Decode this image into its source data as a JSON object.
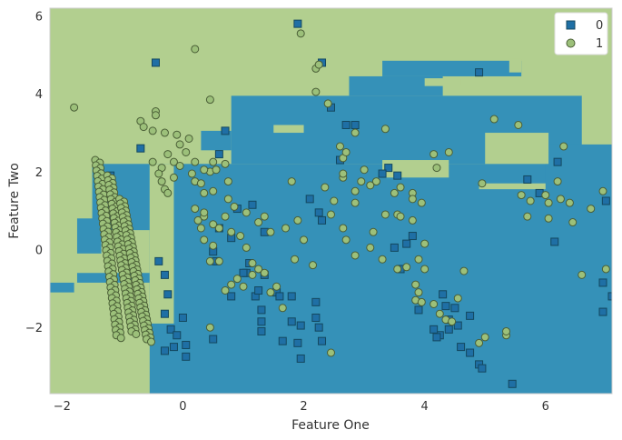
{
  "chart_data": {
    "type": "scatter",
    "title": "",
    "xlabel": "Feature One",
    "ylabel": "Feature Two",
    "xlim": [
      -2.2,
      7.1
    ],
    "ylim": [
      -3.7,
      6.2
    ],
    "xticks": [
      "−2",
      "0",
      "2",
      "4",
      "6"
    ],
    "xtick_values": [
      -2,
      0,
      2,
      4,
      6
    ],
    "yticks": [
      "−2",
      "0",
      "2",
      "4",
      "6"
    ],
    "ytick_values": [
      -2,
      0,
      2,
      4,
      6
    ],
    "grid": false,
    "legend_position": "top-right",
    "background_colors": {
      "class_0_region": "#3591b8",
      "class_1_region": "#b2cf8f"
    },
    "series": [
      {
        "name": "0",
        "marker": "square",
        "color": "#1f6fa5",
        "points": [
          [
            1.9,
            5.8
          ],
          [
            -0.45,
            4.8
          ],
          [
            2.3,
            4.8
          ],
          [
            4.9,
            4.55
          ],
          [
            2.45,
            3.65
          ],
          [
            2.7,
            3.2
          ],
          [
            2.85,
            3.2
          ],
          [
            0.7,
            3.05
          ],
          [
            -0.7,
            2.6
          ],
          [
            0.6,
            2.45
          ],
          [
            -1.2,
            1.9
          ],
          [
            3.4,
            2.1
          ],
          [
            2.6,
            2.3
          ],
          [
            3.55,
            1.9
          ],
          [
            3.3,
            1.95
          ],
          [
            5.7,
            1.8
          ],
          [
            6.2,
            2.25
          ],
          [
            5.9,
            1.45
          ],
          [
            7.0,
            1.25
          ],
          [
            2.1,
            1.3
          ],
          [
            2.25,
            0.95
          ],
          [
            2.3,
            0.75
          ],
          [
            0.9,
            1.05
          ],
          [
            1.15,
            1.15
          ],
          [
            0.6,
            0.55
          ],
          [
            1.35,
            0.45
          ],
          [
            3.8,
            0.35
          ],
          [
            3.7,
            0.15
          ],
          [
            3.5,
            0.05
          ],
          [
            6.15,
            0.2
          ],
          [
            3.6,
            -0.5
          ],
          [
            0.5,
            -0.05
          ],
          [
            0.55,
            -0.3
          ],
          [
            0.8,
            0.3
          ],
          [
            1.05,
            -0.6
          ],
          [
            1.0,
            -0.6
          ],
          [
            1.35,
            -0.65
          ],
          [
            1.1,
            -0.35
          ],
          [
            0.8,
            -1.2
          ],
          [
            1.2,
            -1.2
          ],
          [
            1.25,
            -1.05
          ],
          [
            1.55,
            -1.1
          ],
          [
            1.6,
            -1.2
          ],
          [
            1.8,
            -1.2
          ],
          [
            -0.4,
            -0.3
          ],
          [
            -0.3,
            -0.65
          ],
          [
            -0.25,
            -1.15
          ],
          [
            -0.3,
            -1.65
          ],
          [
            -0.2,
            -2.05
          ],
          [
            -0.1,
            -2.2
          ],
          [
            -0.15,
            -2.5
          ],
          [
            0.05,
            -2.45
          ],
          [
            0.05,
            -2.75
          ],
          [
            -0.3,
            -2.6
          ],
          [
            0.0,
            -1.75
          ],
          [
            1.3,
            -1.55
          ],
          [
            1.3,
            -1.85
          ],
          [
            1.3,
            -2.1
          ],
          [
            1.8,
            -1.85
          ],
          [
            1.95,
            -1.95
          ],
          [
            1.9,
            -2.4
          ],
          [
            1.95,
            -2.8
          ],
          [
            2.2,
            -1.35
          ],
          [
            2.2,
            -1.75
          ],
          [
            2.25,
            -2.0
          ],
          [
            2.3,
            -2.35
          ],
          [
            3.9,
            -1.55
          ],
          [
            4.3,
            -1.15
          ],
          [
            4.35,
            -1.45
          ],
          [
            4.4,
            -1.8
          ],
          [
            4.4,
            -2.05
          ],
          [
            4.5,
            -1.5
          ],
          [
            4.55,
            -1.95
          ],
          [
            4.6,
            -2.5
          ],
          [
            4.75,
            -2.65
          ],
          [
            4.75,
            -1.7
          ],
          [
            4.9,
            -2.95
          ],
          [
            4.95,
            -3.05
          ],
          [
            5.45,
            -3.45
          ],
          [
            4.25,
            -2.2
          ],
          [
            4.15,
            -2.05
          ],
          [
            6.95,
            -0.85
          ],
          [
            7.1,
            -1.2
          ],
          [
            6.95,
            -1.6
          ],
          [
            1.65,
            -2.35
          ],
          [
            0.5,
            -2.3
          ],
          [
            4.2,
            -2.25
          ]
        ]
      },
      {
        "name": "1",
        "marker": "circle",
        "color": "#9cc07a",
        "points": [
          [
            1.95,
            5.55
          ],
          [
            2.2,
            4.65
          ],
          [
            2.25,
            4.75
          ],
          [
            0.2,
            5.15
          ],
          [
            -1.8,
            3.65
          ],
          [
            -0.45,
            3.55
          ],
          [
            -0.45,
            3.45
          ],
          [
            0.45,
            3.85
          ],
          [
            2.2,
            4.05
          ],
          [
            2.4,
            3.75
          ],
          [
            3.35,
            3.1
          ],
          [
            2.85,
            3.0
          ],
          [
            2.6,
            2.65
          ],
          [
            2.65,
            2.35
          ],
          [
            2.7,
            2.5
          ],
          [
            -0.7,
            3.3
          ],
          [
            -0.65,
            3.15
          ],
          [
            -0.5,
            3.05
          ],
          [
            -0.3,
            3.0
          ],
          [
            -0.1,
            2.95
          ],
          [
            0.1,
            2.85
          ],
          [
            -0.05,
            2.7
          ],
          [
            0.05,
            2.5
          ],
          [
            -0.25,
            2.45
          ],
          [
            -0.15,
            2.25
          ],
          [
            -0.5,
            2.25
          ],
          [
            -0.35,
            2.1
          ],
          [
            -0.05,
            2.15
          ],
          [
            0.2,
            2.25
          ],
          [
            0.5,
            2.25
          ],
          [
            0.45,
            2.0
          ],
          [
            0.35,
            2.05
          ],
          [
            0.55,
            2.05
          ],
          [
            0.7,
            2.2
          ],
          [
            0.75,
            1.75
          ],
          [
            -0.4,
            1.95
          ],
          [
            -0.35,
            1.75
          ],
          [
            -0.3,
            1.55
          ],
          [
            -0.25,
            1.45
          ],
          [
            -0.15,
            1.85
          ],
          [
            0.15,
            1.95
          ],
          [
            0.2,
            1.75
          ],
          [
            0.3,
            1.7
          ],
          [
            0.35,
            1.45
          ],
          [
            0.5,
            1.5
          ],
          [
            0.75,
            1.3
          ],
          [
            0.85,
            1.1
          ],
          [
            1.05,
            0.95
          ],
          [
            0.35,
            0.85
          ],
          [
            0.2,
            1.05
          ],
          [
            0.35,
            0.95
          ],
          [
            0.25,
            0.75
          ],
          [
            0.3,
            0.55
          ],
          [
            0.5,
            0.65
          ],
          [
            0.6,
            0.55
          ],
          [
            0.7,
            0.85
          ],
          [
            0.8,
            0.45
          ],
          [
            0.95,
            0.35
          ],
          [
            1.05,
            0.05
          ],
          [
            1.25,
            0.7
          ],
          [
            1.35,
            0.85
          ],
          [
            1.45,
            0.45
          ],
          [
            1.15,
            -0.35
          ],
          [
            1.25,
            -0.5
          ],
          [
            1.35,
            -0.6
          ],
          [
            1.45,
            -1.1
          ],
          [
            1.55,
            -0.95
          ],
          [
            1.65,
            -1.5
          ],
          [
            0.9,
            -0.75
          ],
          [
            1.0,
            -0.95
          ],
          [
            1.15,
            -0.65
          ],
          [
            0.8,
            -0.9
          ],
          [
            0.7,
            -1.05
          ],
          [
            0.6,
            -0.3
          ],
          [
            0.45,
            -0.3
          ],
          [
            0.5,
            0.1
          ],
          [
            0.35,
            0.25
          ],
          [
            1.85,
            -0.25
          ],
          [
            1.8,
            1.75
          ],
          [
            2.95,
            1.75
          ],
          [
            2.85,
            1.5
          ],
          [
            2.65,
            1.85
          ],
          [
            2.65,
            1.95
          ],
          [
            3.0,
            2.05
          ],
          [
            3.2,
            1.75
          ],
          [
            3.1,
            1.65
          ],
          [
            3.6,
            1.6
          ],
          [
            3.5,
            1.45
          ],
          [
            3.8,
            1.45
          ],
          [
            3.8,
            1.3
          ],
          [
            3.95,
            1.2
          ],
          [
            3.55,
            0.9
          ],
          [
            3.8,
            0.75
          ],
          [
            3.35,
            0.9
          ],
          [
            3.6,
            0.85
          ],
          [
            3.15,
            0.45
          ],
          [
            3.1,
            0.05
          ],
          [
            2.7,
            0.25
          ],
          [
            2.85,
            -0.15
          ],
          [
            3.3,
            -0.25
          ],
          [
            3.55,
            -0.5
          ],
          [
            3.7,
            -0.45
          ],
          [
            3.9,
            -0.25
          ],
          [
            4.0,
            0.15
          ],
          [
            4.0,
            -0.5
          ],
          [
            3.85,
            -0.9
          ],
          [
            3.9,
            -1.1
          ],
          [
            3.85,
            -1.3
          ],
          [
            3.95,
            -1.35
          ],
          [
            4.15,
            -1.4
          ],
          [
            4.25,
            -1.65
          ],
          [
            4.35,
            -1.8
          ],
          [
            4.45,
            -1.85
          ],
          [
            4.55,
            -1.25
          ],
          [
            4.65,
            -0.55
          ],
          [
            4.9,
            -2.4
          ],
          [
            5.0,
            -2.25
          ],
          [
            5.35,
            -2.2
          ],
          [
            5.35,
            -2.1
          ],
          [
            5.15,
            3.35
          ],
          [
            5.55,
            3.2
          ],
          [
            4.95,
            1.7
          ],
          [
            5.6,
            1.4
          ],
          [
            5.7,
            0.85
          ],
          [
            5.75,
            1.25
          ],
          [
            6.0,
            1.4
          ],
          [
            6.05,
            1.2
          ],
          [
            6.2,
            1.75
          ],
          [
            6.3,
            2.65
          ],
          [
            6.25,
            1.3
          ],
          [
            6.4,
            1.2
          ],
          [
            6.05,
            0.8
          ],
          [
            6.45,
            0.7
          ],
          [
            6.75,
            1.05
          ],
          [
            6.95,
            1.5
          ],
          [
            6.6,
            -0.65
          ],
          [
            7.0,
            -0.5
          ],
          [
            4.15,
            2.45
          ],
          [
            4.4,
            2.5
          ],
          [
            4.2,
            2.1
          ],
          [
            2.85,
            1.2
          ],
          [
            2.5,
            1.25
          ],
          [
            2.45,
            0.9
          ],
          [
            2.65,
            0.55
          ],
          [
            2.15,
            -0.4
          ],
          [
            2.0,
            0.25
          ],
          [
            1.9,
            0.75
          ],
          [
            1.7,
            0.55
          ],
          [
            0.45,
            -2.0
          ],
          [
            2.45,
            -2.65
          ],
          [
            2.35,
            1.6
          ]
        ]
      }
    ],
    "bands": [
      {
        "x": [
          -1.45,
          -1.1
        ],
        "y0": -1.95,
        "slope": -3.7,
        "n": 34,
        "y_range": [
          -2.2,
          2.3
        ]
      },
      {
        "x": [
          -1.25,
          -0.85
        ],
        "y0": -1.25,
        "slope": -3.6,
        "n": 34,
        "y_range": [
          -2.1,
          1.9
        ]
      },
      {
        "x": [
          -1.05,
          -0.6
        ],
        "y0": -0.55,
        "slope": -3.5,
        "n": 32,
        "y_range": [
          -2.3,
          1.3
        ]
      }
    ]
  }
}
